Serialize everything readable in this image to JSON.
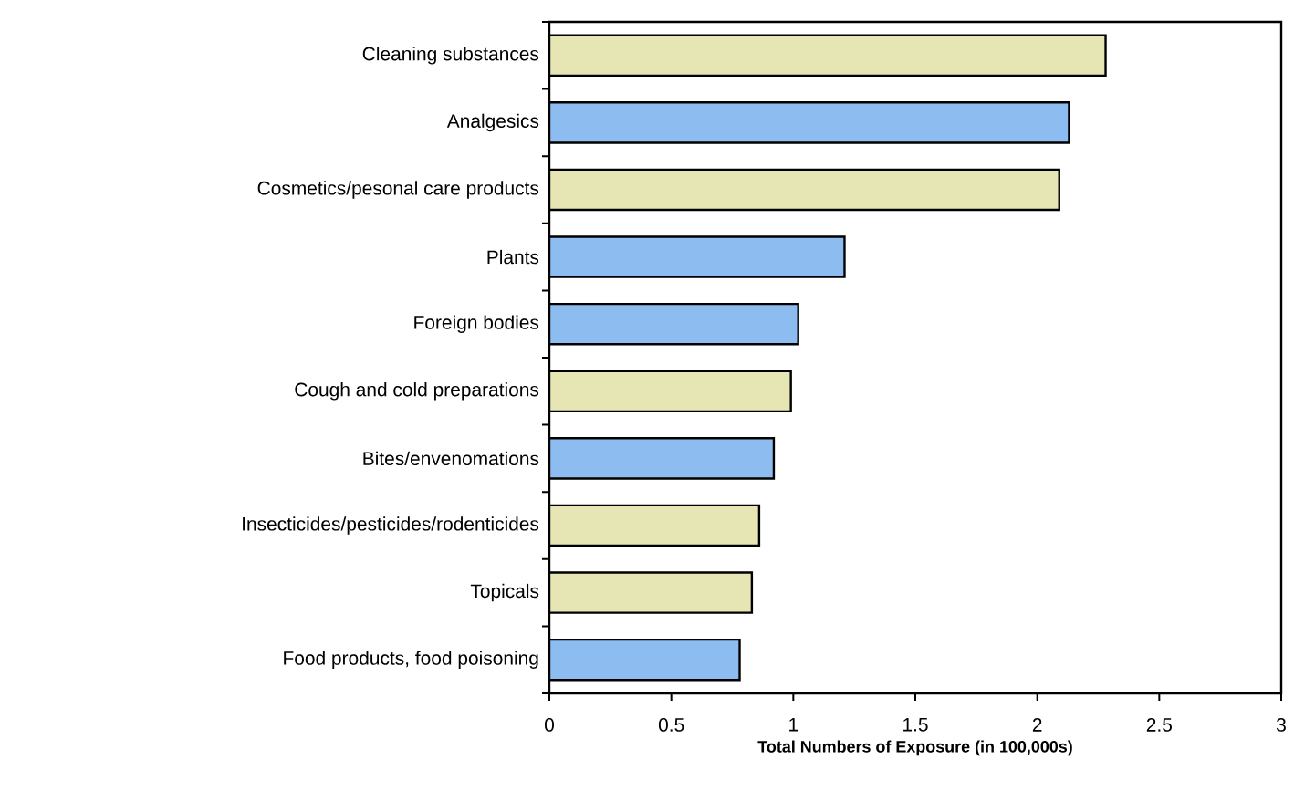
{
  "chart_data": {
    "type": "bar",
    "orientation": "horizontal",
    "xlabel": "Total Numbers of Exposure (in 100,000s)",
    "categories": [
      "Cleaning substances",
      "Analgesics",
      "Cosmetics/pesonal care products",
      "Plants",
      "Foreign bodies",
      "Cough and cold preparations",
      "Bites/envenomations",
      "Insecticides/pesticides/rodenticides",
      "Topicals",
      "Food products, food poisoning"
    ],
    "values": [
      2.28,
      2.13,
      2.09,
      1.21,
      1.02,
      0.99,
      0.92,
      0.86,
      0.83,
      0.78
    ],
    "colors": [
      "#e6e6b4",
      "#8cbcf0",
      "#e6e6b4",
      "#8cbcf0",
      "#8cbcf0",
      "#e6e6b4",
      "#8cbcf0",
      "#e6e6b4",
      "#e6e6b4",
      "#8cbcf0"
    ],
    "xlim": [
      0,
      3
    ],
    "xticks": [
      0,
      0.5,
      1,
      1.5,
      2,
      2.5,
      3
    ]
  }
}
